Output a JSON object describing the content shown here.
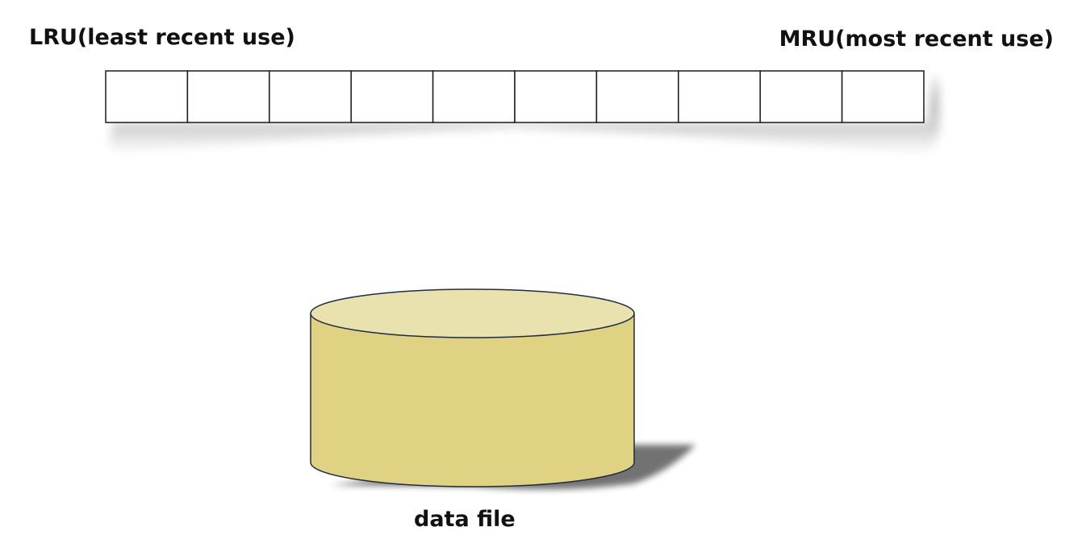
{
  "lru_label": "LRU(least recent use)",
  "mru_label": "MRU(most recent use)",
  "buffer": {
    "slot_count": 10
  },
  "storage": {
    "label": "data file",
    "icon": "database-cylinder-icon",
    "top_color": "#e9e1ae",
    "body_color": "#dfd282",
    "outline_color": "#1e2b45"
  }
}
